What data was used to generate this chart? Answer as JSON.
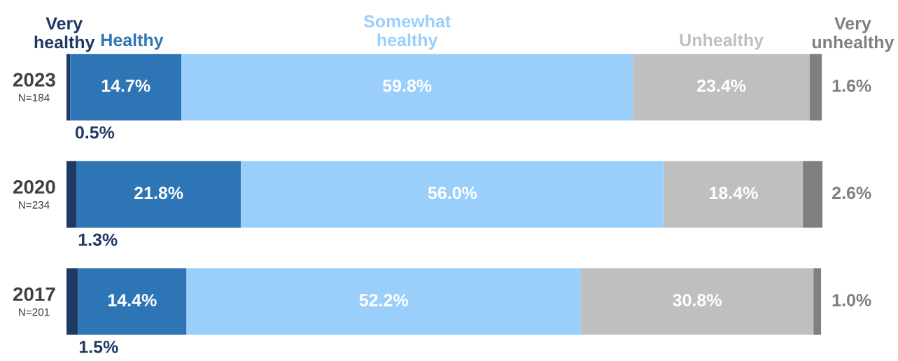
{
  "chart_data": {
    "type": "bar",
    "orientation": "horizontal",
    "stacked": true,
    "legend": false,
    "categories": [
      "2023\nN=184",
      "2020\nN=234",
      "2017\nN=201"
    ],
    "series": [
      {
        "name": "Very\nhealthy",
        "color": "#1f3864",
        "values": [
          0.5,
          1.3,
          1.5
        ],
        "value_labels": [
          "0.5%",
          "1.3%",
          "1.5%"
        ]
      },
      {
        "name": "Healthy",
        "color": "#2e75b6",
        "values": [
          14.7,
          21.8,
          14.4
        ],
        "value_labels": [
          "14.7%",
          "21.8%",
          "14.4%"
        ]
      },
      {
        "name": "Somewhat\nhealthy",
        "color": "#9bcffb",
        "values": [
          59.8,
          56.0,
          52.2
        ],
        "value_labels": [
          "59.8%",
          "56.0%",
          "52.2%"
        ]
      },
      {
        "name": "Unhealthy",
        "color": "#bfbfbf",
        "values": [
          23.4,
          18.4,
          30.8
        ],
        "value_labels": [
          "23.4%",
          "18.4%",
          "30.8%"
        ]
      },
      {
        "name": "Very\nunhealthy",
        "color": "#7f7f7f",
        "values": [
          1.6,
          2.6,
          1.0
        ],
        "value_labels": [
          "1.6%",
          "2.6%",
          "1.0%"
        ]
      }
    ]
  }
}
